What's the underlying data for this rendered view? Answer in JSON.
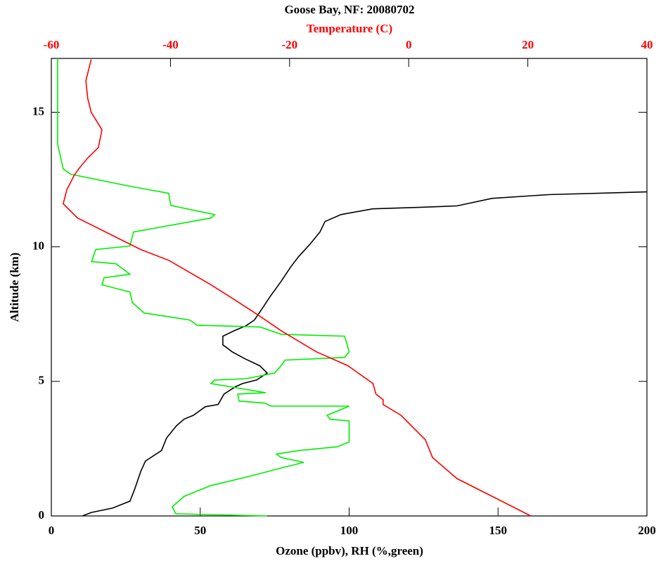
{
  "chart_data": {
    "type": "line",
    "title": "Goose Bay, NF: 20080702",
    "xlabel": "Ozone (ppbv), RH (%,green)",
    "x2label": "Temperature (C)",
    "ylabel": "Altitude (km)",
    "xlim": [
      0,
      200
    ],
    "xticks": [
      0,
      50,
      100,
      150,
      200
    ],
    "x2lim": [
      -60,
      40
    ],
    "x2ticks": [
      -60,
      -40,
      -20,
      0,
      20,
      40
    ],
    "x2color": "#ff0000",
    "ylim": [
      0,
      17
    ],
    "yticks": [
      0,
      5,
      10,
      15
    ],
    "series": [
      {
        "color": "#000000",
        "x": [
          10.4,
          13.5,
          20.5,
          26.4,
          28,
          30,
          31.6,
          37,
          38.7,
          42,
          44.6,
          47.7,
          51.7,
          56,
          58,
          61.8,
          64.2,
          68.9,
          72.5,
          70,
          65,
          60.7,
          57.6,
          57.6,
          61.4,
          65.4,
          68.2,
          70.6,
          73.7,
          77.2,
          80.3,
          83,
          86.7,
          90.2,
          91.9,
          97.3,
          107.9,
          124.4,
          136.2,
          148,
          167,
          200
        ],
        "values": [
          0,
          0.13,
          0.29,
          0.55,
          1.0,
          1.65,
          2.04,
          2.43,
          2.9,
          3.35,
          3.6,
          3.74,
          4.06,
          4.14,
          4.53,
          4.8,
          4.92,
          5.05,
          5.31,
          5.58,
          5.84,
          6.1,
          6.36,
          6.68,
          6.88,
          7.07,
          7.28,
          7.67,
          8.19,
          8.72,
          9.24,
          9.63,
          10.08,
          10.55,
          10.94,
          11.2,
          11.41,
          11.47,
          11.52,
          11.8,
          11.94,
          12.04
        ]
      },
      {
        "color": "#00ee00",
        "x": [
          72.5,
          41.8,
          40.6,
          44.6,
          53.6,
          65.4,
          77.2,
          84.8,
          77.2,
          75.6,
          83.1,
          96.1,
          100,
          100,
          93.7,
          92.6,
          100,
          73.7,
          71.8,
          63,
          62.6,
          72,
          53.6,
          54.8,
          65.4,
          74.9,
          77.2,
          78.4,
          98.5,
          100,
          98.5,
          77.2,
          70.1,
          48.9,
          46.5,
          31.2,
          27.2,
          26.4,
          17,
          17.7,
          26.4,
          21.7,
          13.5,
          14.9,
          26.4,
          27.6,
          53.6,
          54.8,
          40.1,
          39.4,
          26.4,
          6.4,
          4,
          2.1,
          2.1
        ],
        "values": [
          0,
          0.08,
          0.34,
          0.73,
          1.13,
          1.44,
          1.78,
          1.99,
          2.17,
          2.3,
          2.43,
          2.57,
          2.75,
          3.53,
          3.59,
          3.74,
          4.08,
          4.08,
          4.19,
          4.27,
          4.53,
          4.58,
          4.92,
          5.05,
          5.1,
          5.31,
          5.58,
          5.79,
          5.89,
          6.1,
          6.68,
          6.75,
          7.02,
          7.09,
          7.28,
          7.54,
          7.93,
          8.32,
          8.59,
          8.85,
          8.98,
          9.37,
          9.45,
          9.9,
          10.03,
          10.55,
          11.07,
          11.2,
          11.54,
          11.99,
          12.25,
          12.7,
          12.9,
          13.82,
          17
        ]
      },
      {
        "color": "#ff0000",
        "axis": "x2",
        "x": [
          20.5,
          14,
          8.1,
          4,
          2.8,
          -1.3,
          -4.3,
          -4.3,
          -5.5,
          -6.0,
          -10.2,
          -15.5,
          -21.4,
          -24.9,
          -28.5,
          -33.2,
          -40.3,
          -45,
          -49.7,
          -55.6,
          -58,
          -57.4,
          -56.2,
          -55.4,
          -53.9,
          -52.1,
          -51.5,
          -53.3,
          -53.9,
          -54.2,
          -53.3
        ],
        "values": [
          0,
          0.73,
          1.39,
          2.17,
          2.83,
          3.74,
          4.14,
          4.32,
          4.53,
          4.92,
          5.58,
          6.1,
          6.88,
          7.41,
          7.93,
          8.59,
          9.5,
          9.9,
          10.42,
          11.07,
          11.6,
          12.12,
          12.64,
          12.9,
          13.3,
          13.69,
          14.35,
          15.0,
          15.52,
          16.17,
          16.96
        ]
      }
    ]
  }
}
